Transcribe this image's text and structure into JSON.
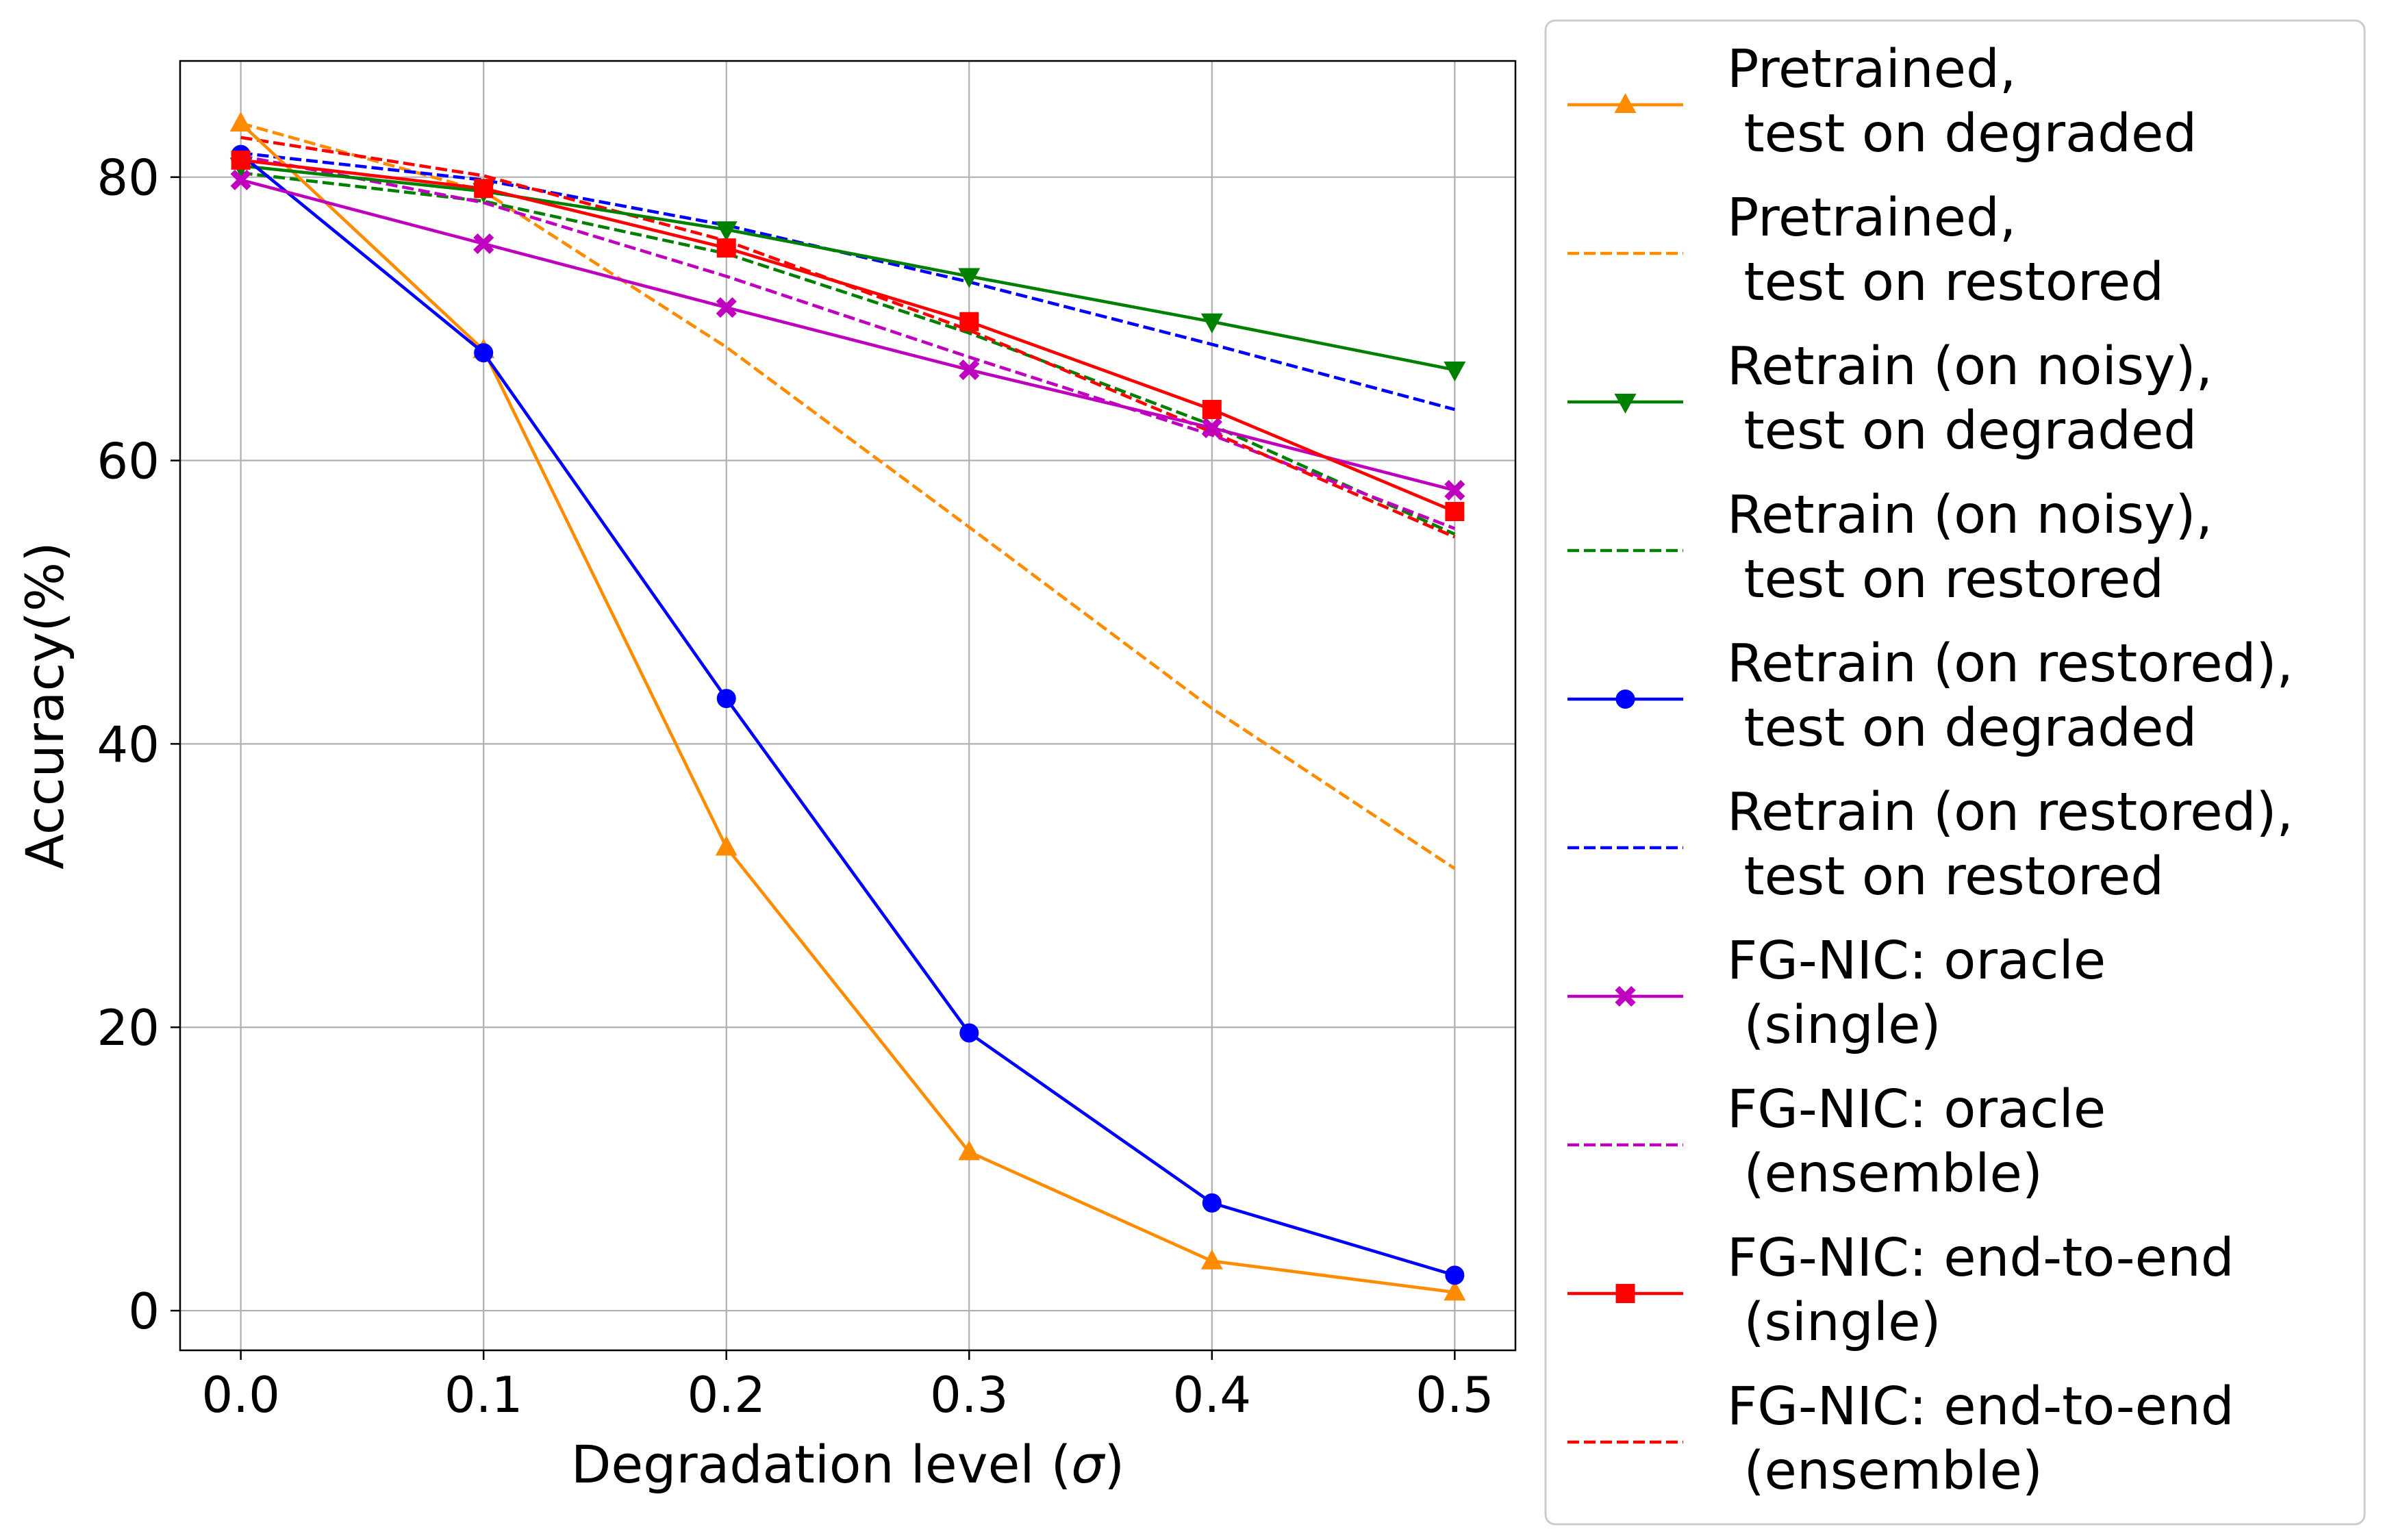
{
  "chart_data": {
    "type": "line",
    "xlabel": "Degradation level (σ)",
    "xlabel_parts": [
      "Degradation level (",
      "σ",
      ")"
    ],
    "ylabel": "Accuracy(%)",
    "x": [
      0.0,
      0.1,
      0.2,
      0.3,
      0.4,
      0.5
    ],
    "x_tick_labels": [
      "0.0",
      "0.1",
      "0.2",
      "0.3",
      "0.4",
      "0.5"
    ],
    "y_ticks": [
      0,
      20,
      40,
      60,
      80
    ],
    "y_tick_labels": [
      "0",
      "20",
      "40",
      "60",
      "80"
    ],
    "xlim": [
      -0.025,
      0.525
    ],
    "ylim": [
      -2.8,
      88.2
    ],
    "grid": true,
    "legend_placement": "outside right",
    "series": [
      {
        "name": "Pretrained,\n test on degraded",
        "name_lines": [
          "Pretrained,",
          " test on degraded"
        ],
        "color": "#ff8c00",
        "dash": "solid",
        "marker": "triangle-up",
        "values": [
          83.8,
          67.8,
          32.7,
          11.2,
          3.5,
          1.3
        ]
      },
      {
        "name": "Pretrained,\n test on restored",
        "name_lines": [
          "Pretrained,",
          " test on restored"
        ],
        "color": "#ff8c00",
        "dash": "dashed",
        "marker": "none",
        "values": [
          83.8,
          79.0,
          68.0,
          55.3,
          42.5,
          31.2
        ]
      },
      {
        "name": "Retrain (on noisy),\n test on degraded",
        "name_lines": [
          "Retrain (on noisy),",
          " test on degraded"
        ],
        "color": "#008000",
        "dash": "solid",
        "marker": "triangle-down",
        "values": [
          80.8,
          79.0,
          76.3,
          73.0,
          69.8,
          66.4
        ]
      },
      {
        "name": "Retrain (on noisy),\n test on restored",
        "name_lines": [
          "Retrain (on noisy),",
          " test on restored"
        ],
        "color": "#008000",
        "dash": "dashed",
        "marker": "none",
        "values": [
          80.3,
          78.3,
          74.6,
          69.0,
          62.5,
          54.8
        ]
      },
      {
        "name": "Retrain (on restored),\n test on degraded",
        "name_lines": [
          "Retrain (on restored),",
          " test on degraded"
        ],
        "color": "#0000ff",
        "dash": "solid",
        "marker": "circle",
        "values": [
          81.6,
          67.6,
          43.2,
          19.6,
          7.6,
          2.5
        ]
      },
      {
        "name": "Retrain (on restored),\n test on restored",
        "name_lines": [
          "Retrain (on restored),",
          " test on restored"
        ],
        "color": "#0000ff",
        "dash": "dashed",
        "marker": "none",
        "values": [
          81.7,
          79.8,
          76.6,
          72.6,
          68.2,
          63.6
        ]
      },
      {
        "name": "FG-NIC: oracle\n (single)",
        "name_lines": [
          "FG-NIC: oracle",
          " (single)"
        ],
        "color": "#bf00bf",
        "dash": "solid",
        "marker": "x",
        "values": [
          79.8,
          75.3,
          70.8,
          66.4,
          62.3,
          57.9
        ]
      },
      {
        "name": "FG-NIC: oracle\n (ensemble)",
        "name_lines": [
          "FG-NIC: oracle",
          " (ensemble)"
        ],
        "color": "#bf00bf",
        "dash": "dashed",
        "marker": "none",
        "values": [
          81.5,
          78.2,
          73.0,
          67.3,
          61.8,
          55.2
        ]
      },
      {
        "name": "FG-NIC: end-to-end\n (single)",
        "name_lines": [
          "FG-NIC: end-to-end",
          " (single)"
        ],
        "color": "#ff0000",
        "dash": "solid",
        "marker": "square",
        "values": [
          81.2,
          79.2,
          75.0,
          69.8,
          63.6,
          56.4
        ]
      },
      {
        "name": "FG-NIC: end-to-end\n (ensemble)",
        "name_lines": [
          "FG-NIC: end-to-end",
          " (ensemble)"
        ],
        "color": "#ff0000",
        "dash": "dashed",
        "marker": "none",
        "values": [
          82.8,
          80.1,
          75.5,
          69.2,
          62.0,
          54.6
        ]
      }
    ]
  }
}
